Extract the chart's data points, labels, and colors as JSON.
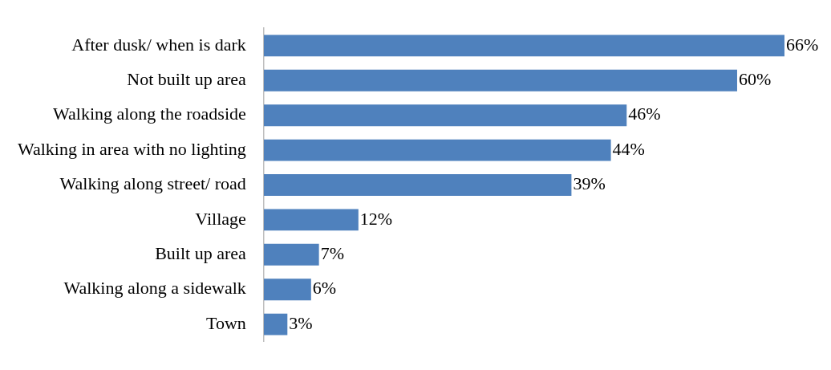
{
  "chart_data": {
    "type": "bar",
    "orientation": "horizontal",
    "categories": [
      "After dusk/ when is dark",
      "Not built up area",
      "Walking along the roadside",
      "Walking in area with no lighting",
      "Walking along street/ road",
      "Village",
      "Built up area",
      "Walking along a sidewalk",
      "Town"
    ],
    "values": [
      66,
      60,
      46,
      44,
      39,
      12,
      7,
      6,
      3
    ],
    "value_labels": [
      "66%",
      "60%",
      "46%",
      "44%",
      "39%",
      "12%",
      "7%",
      "6%",
      "3%"
    ],
    "color": "#4f81bd"
  }
}
